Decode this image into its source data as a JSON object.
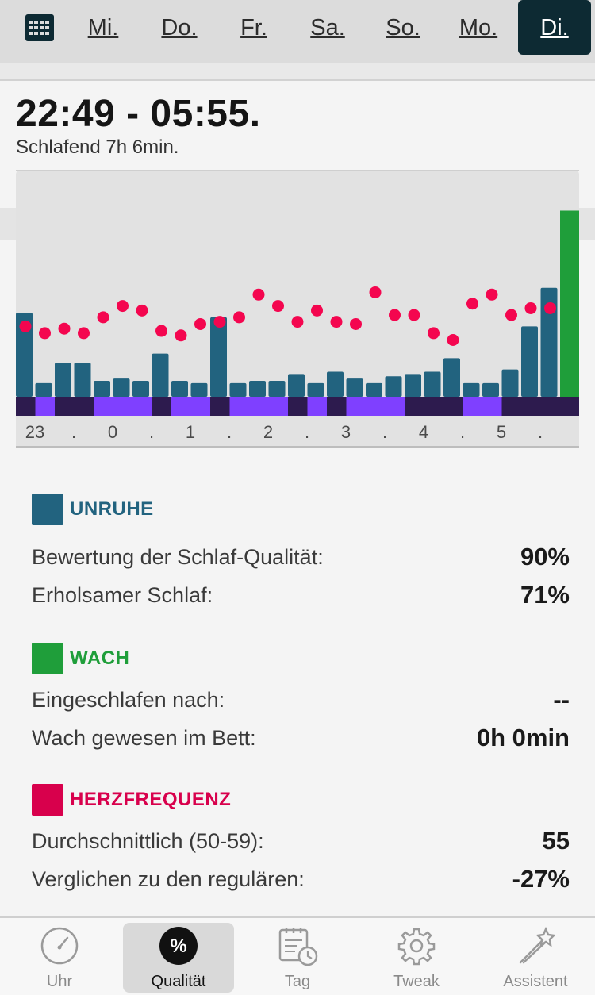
{
  "days": {
    "items": [
      {
        "label": "Mi."
      },
      {
        "label": "Do."
      },
      {
        "label": "Fr."
      },
      {
        "label": "Sa."
      },
      {
        "label": "So."
      },
      {
        "label": "Mo."
      },
      {
        "label": "Di.",
        "active": true
      }
    ]
  },
  "summary": {
    "time_range": "22:49 - 05:55.",
    "duration": "Schlafend 7h 6min."
  },
  "chart_data": {
    "type": "bar",
    "x_tick_labels": [
      "23",
      ".",
      "0",
      ".",
      "1",
      ".",
      "2",
      ".",
      "3",
      ".",
      "4",
      ".",
      "5",
      "."
    ],
    "unrest_values": [
      0.37,
      0.06,
      0.15,
      0.15,
      0.07,
      0.08,
      0.07,
      0.19,
      0.07,
      0.06,
      0.35,
      0.06,
      0.07,
      0.07,
      0.1,
      0.06,
      0.11,
      0.08,
      0.06,
      0.09,
      0.1,
      0.11,
      0.17,
      0.06,
      0.06,
      0.12,
      0.31,
      0.48
    ],
    "awake_final_value": 0.82,
    "heart_rate_values": [
      0.31,
      0.28,
      0.3,
      0.28,
      0.35,
      0.4,
      0.38,
      0.29,
      0.27,
      0.32,
      0.33,
      0.35,
      0.45,
      0.4,
      0.33,
      0.38,
      0.33,
      0.32,
      0.46,
      0.36,
      0.36,
      0.28,
      0.25,
      0.41,
      0.45,
      0.36,
      0.39,
      0.39
    ],
    "phase_strip": [
      "deep",
      "light",
      "deep",
      "deep",
      "light",
      "light",
      "light",
      "deep",
      "light",
      "light",
      "deep",
      "light",
      "light",
      "light",
      "deep",
      "light",
      "deep",
      "light",
      "light",
      "light",
      "deep",
      "deep",
      "deep",
      "light",
      "light",
      "deep",
      "deep",
      "deep"
    ],
    "colors": {
      "unrest": "#22637f",
      "awake": "#1f9e3a",
      "heart": "#f4064f",
      "deep": "#2d1b4e",
      "light": "#7f40ff",
      "background": "#e2e2e2"
    }
  },
  "sections": {
    "unruhe": {
      "title": "UNRUHE",
      "color": "#22637f",
      "rows": [
        {
          "label": "Bewertung der Schlaf-Qualität:",
          "value": "90%"
        },
        {
          "label": "Erholsamer Schlaf:",
          "value": "71%"
        }
      ]
    },
    "wach": {
      "title": "WACH",
      "color": "#1f9e3a",
      "rows": [
        {
          "label": "Eingeschlafen nach:",
          "value": "--"
        },
        {
          "label": "Wach gewesen im Bett:",
          "value": "0h 0min"
        }
      ]
    },
    "herz": {
      "title": "HERZFREQUENZ",
      "color": "#d8004c",
      "rows": [
        {
          "label": "Durchschnittlich (50-59):",
          "value": "55"
        },
        {
          "label": "Verglichen zu den regulären:",
          "value": "-27%"
        }
      ]
    }
  },
  "tabbar": {
    "items": [
      {
        "label": "Uhr",
        "icon": "gauge-icon"
      },
      {
        "label": "Qualität",
        "icon": "percent-icon",
        "active": true
      },
      {
        "label": "Tag",
        "icon": "calendar-clock-icon"
      },
      {
        "label": "Tweak",
        "icon": "gear-icon"
      },
      {
        "label": "Assistent",
        "icon": "magic-wand-icon"
      }
    ]
  }
}
